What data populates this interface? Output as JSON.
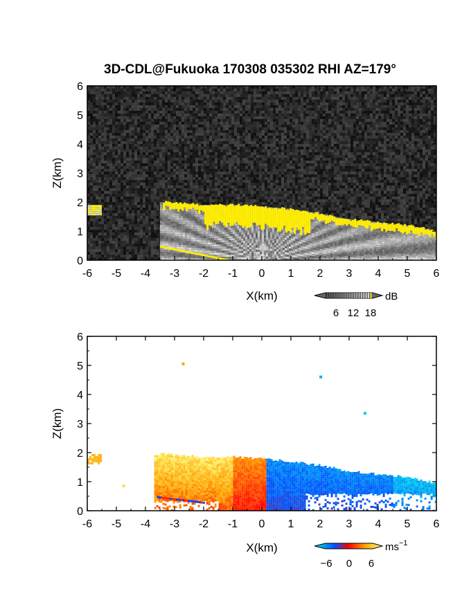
{
  "title": "3D-CDL@Fukuoka 170308 035302 RHI AZ=179°",
  "chart_data": [
    {
      "type": "heatmap",
      "panel": "reflectivity",
      "xlabel": "X(km)",
      "ylabel": "Z(km)",
      "xlim": [
        -6,
        6
      ],
      "ylim": [
        0,
        6
      ],
      "xticks": [
        "-6",
        "-5",
        "-4",
        "-3",
        "-2",
        "-1",
        "0",
        "1",
        "2",
        "3",
        "4",
        "5",
        "6"
      ],
      "yticks": [
        "0",
        "1",
        "2",
        "3",
        "4",
        "5",
        "6"
      ],
      "colorbar": {
        "unit": "dB",
        "ticks": [
          "6",
          "12",
          "18"
        ],
        "colors": [
          "#000000",
          "#ffffff",
          "#ffff00"
        ]
      },
      "layer_top_km": [
        {
          "x": -5.9,
          "z": 1.85
        },
        {
          "x": -3.4,
          "z": 2.0
        },
        {
          "x": -2.0,
          "z": 1.9
        },
        {
          "x": -1.0,
          "z": 1.9
        },
        {
          "x": 0.0,
          "z": 1.85
        },
        {
          "x": 1.0,
          "z": 1.75
        },
        {
          "x": 2.0,
          "z": 1.6
        },
        {
          "x": 3.0,
          "z": 1.4
        },
        {
          "x": 4.0,
          "z": 1.3
        },
        {
          "x": 5.0,
          "z": 1.2
        },
        {
          "x": 6.0,
          "z": 1.0
        }
      ]
    },
    {
      "type": "heatmap",
      "panel": "doppler-velocity",
      "xlabel": "X(km)",
      "ylabel": "Z(km)",
      "xlim": [
        -6,
        6
      ],
      "ylim": [
        0,
        6
      ],
      "xticks": [
        "-6",
        "-5",
        "-4",
        "-3",
        "-2",
        "-1",
        "0",
        "1",
        "2",
        "3",
        "4",
        "5",
        "6"
      ],
      "yticks": [
        "0",
        "1",
        "2",
        "3",
        "4",
        "5",
        "6"
      ],
      "colorbar": {
        "unit": "ms",
        "unit_exponent": "−1",
        "ticks": [
          "−6",
          "0",
          "6"
        ],
        "colors": [
          "#00e5ee",
          "#0050ff",
          "#ff0000",
          "#ffa500",
          "#ffff80"
        ]
      },
      "velocity_sign_change_x_km": 0.1
    }
  ]
}
